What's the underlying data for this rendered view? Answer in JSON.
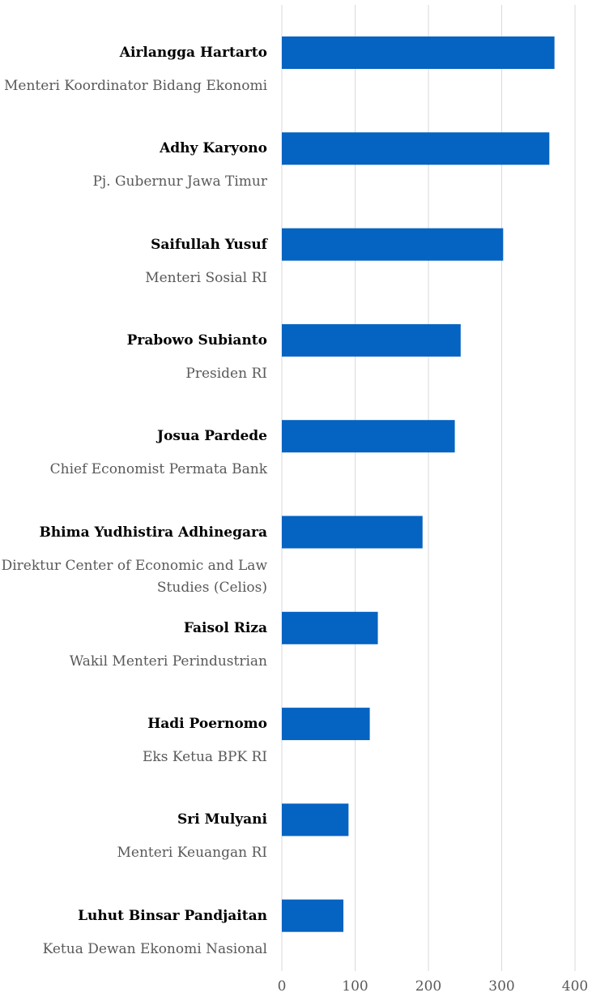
{
  "chart_data": {
    "type": "bar",
    "orientation": "horizontal",
    "categories": [
      "Airlangga Hartarto",
      "Adhy Karyono",
      "Saifullah Yusuf",
      "Prabowo Subianto",
      "Josua Pardede",
      "Bhima Yudhistira Adhinegara",
      "Faisol Riza",
      "Hadi Poernomo",
      "Sri Mulyani",
      "Luhut Binsar Pandjaitan"
    ],
    "subtitles": [
      "Menteri Koordinator Bidang Ekonomi",
      "Pj. Gubernur Jawa Timur",
      "Menteri Sosial RI",
      "Presiden RI",
      "Chief Economist Permata Bank",
      "Direktur Center of Economic and Law Studies (Celios)",
      "Wakil Menteri Perindustrian",
      "Eks Ketua BPK RI",
      "Menteri Keuangan RI",
      "Ketua Dewan Ekonomi Nasional"
    ],
    "values": [
      372,
      365,
      302,
      244,
      236,
      192,
      131,
      120,
      91,
      84
    ],
    "color": "#0563c1",
    "xlim": [
      0,
      400
    ],
    "xticks": [
      0,
      100,
      200,
      300,
      400
    ],
    "grid": true
  }
}
